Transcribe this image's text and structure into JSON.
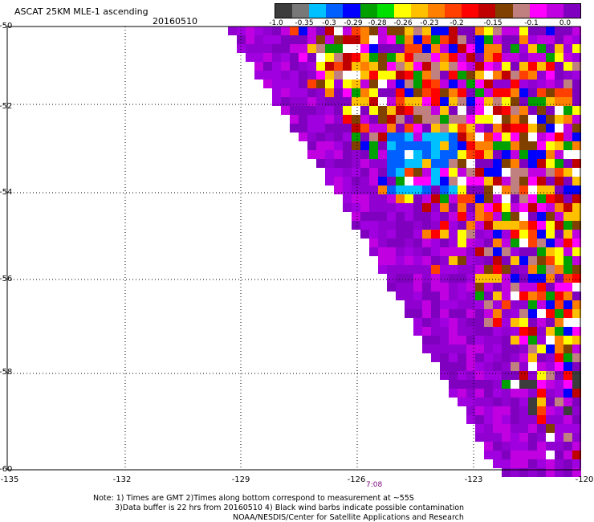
{
  "header": {
    "title": "ASCAT 25KM MLE-1 ascending",
    "date": "20160510"
  },
  "colorbar": {
    "colors": [
      "#3c3c3c",
      "#787878",
      "#00c0ff",
      "#0060ff",
      "#0000ff",
      "#00a000",
      "#00e000",
      "#ffff00",
      "#ffc000",
      "#ff8000",
      "#ff4000",
      "#ff0000",
      "#c00000",
      "#804000",
      "#c08080",
      "#ff00ff",
      "#c000e0",
      "#8000c0"
    ],
    "labels": [
      "-1.0",
      "-0.35",
      "-0.3",
      "-0.29",
      "-0.28",
      "-0.26",
      "-0.23",
      "-0.2",
      "-0.15",
      "-0.1",
      "0.0"
    ]
  },
  "map": {
    "lat_labels": [
      "-50",
      "-52",
      "-54",
      "-56",
      "-58",
      "-60"
    ],
    "lon_labels": [
      "-135",
      "-132",
      "-129",
      "-126",
      "-123",
      "-120"
    ],
    "lat_range": [
      -60,
      -50
    ],
    "lon_range": [
      -135,
      -120
    ],
    "grid": "dotted",
    "swath_time": "7:08"
  },
  "notes": {
    "line1": "Note: 1) Times are GMT 2)Times along bottom correspond to measurement at ~55S",
    "line2": "3)Data buffer is 22 hrs from 20160510 4) Black wind barbs indicate possible contamination",
    "line3": "NOAA/NESDIS/Center for Satellite Applications and Research"
  }
}
